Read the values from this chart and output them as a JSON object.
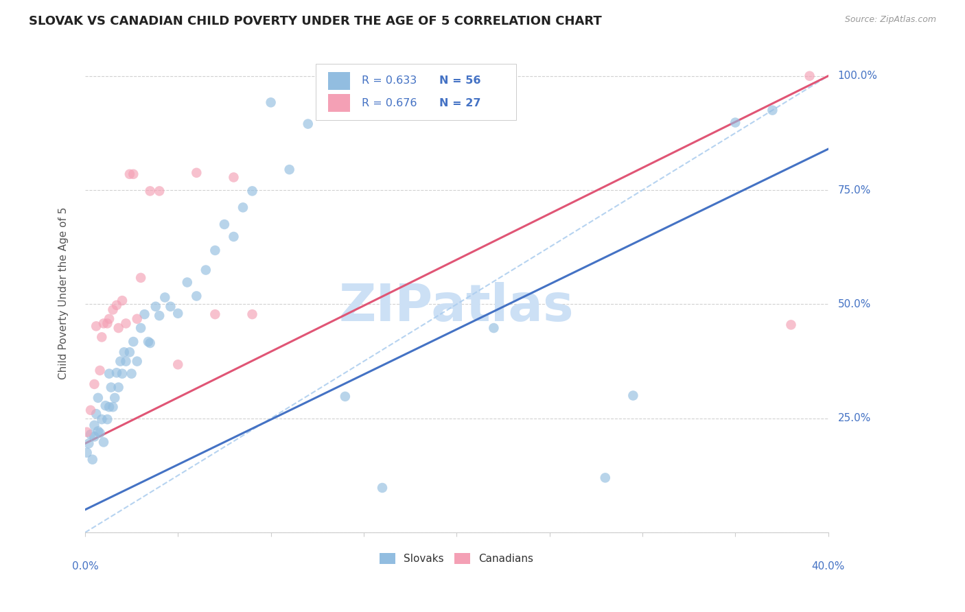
{
  "title": "SLOVAK VS CANADIAN CHILD POVERTY UNDER THE AGE OF 5 CORRELATION CHART",
  "source": "Source: ZipAtlas.com",
  "ylabel": "Child Poverty Under the Age of 5",
  "xmin": 0.0,
  "xmax": 0.4,
  "ymin": 0.0,
  "ymax": 1.05,
  "legend_R_slovak": "R = 0.633",
  "legend_N_slovak": "N = 56",
  "legend_R_canadian": "R = 0.676",
  "legend_N_canadian": "N = 27",
  "slovak_color": "#92bde0",
  "canadian_color": "#f4a0b5",
  "slovak_line_color": "#4472c4",
  "canadian_line_color": "#e05575",
  "label_color": "#4472c4",
  "watermark_color": "#ddeeff",
  "slovak_x": [
    0.001,
    0.002,
    0.003,
    0.004,
    0.005,
    0.005,
    0.006,
    0.007,
    0.007,
    0.008,
    0.009,
    0.01,
    0.011,
    0.012,
    0.013,
    0.013,
    0.014,
    0.015,
    0.016,
    0.017,
    0.018,
    0.019,
    0.02,
    0.021,
    0.022,
    0.024,
    0.025,
    0.026,
    0.028,
    0.03,
    0.032,
    0.034,
    0.035,
    0.038,
    0.04,
    0.043,
    0.046,
    0.05,
    0.055,
    0.06,
    0.065,
    0.07,
    0.075,
    0.08,
    0.085,
    0.09,
    0.1,
    0.11,
    0.12,
    0.14,
    0.16,
    0.22,
    0.28,
    0.295,
    0.35,
    0.37
  ],
  "slovak_y": [
    0.175,
    0.195,
    0.215,
    0.16,
    0.21,
    0.235,
    0.26,
    0.222,
    0.295,
    0.218,
    0.248,
    0.198,
    0.278,
    0.248,
    0.275,
    0.348,
    0.318,
    0.275,
    0.295,
    0.35,
    0.318,
    0.375,
    0.348,
    0.395,
    0.375,
    0.395,
    0.348,
    0.418,
    0.375,
    0.448,
    0.478,
    0.418,
    0.415,
    0.495,
    0.475,
    0.515,
    0.495,
    0.48,
    0.548,
    0.518,
    0.575,
    0.618,
    0.675,
    0.648,
    0.712,
    0.748,
    0.942,
    0.795,
    0.895,
    0.298,
    0.098,
    0.448,
    0.12,
    0.3,
    0.898,
    0.925
  ],
  "canadian_x": [
    0.001,
    0.003,
    0.005,
    0.006,
    0.008,
    0.009,
    0.01,
    0.012,
    0.013,
    0.015,
    0.017,
    0.018,
    0.02,
    0.022,
    0.024,
    0.026,
    0.028,
    0.03,
    0.035,
    0.04,
    0.05,
    0.06,
    0.07,
    0.08,
    0.09,
    0.38,
    0.39
  ],
  "canadian_y": [
    0.22,
    0.268,
    0.325,
    0.452,
    0.355,
    0.428,
    0.458,
    0.458,
    0.468,
    0.488,
    0.498,
    0.448,
    0.508,
    0.458,
    0.785,
    0.785,
    0.468,
    0.558,
    0.748,
    0.748,
    0.368,
    0.788,
    0.478,
    0.778,
    0.478,
    0.455,
    1.0
  ]
}
